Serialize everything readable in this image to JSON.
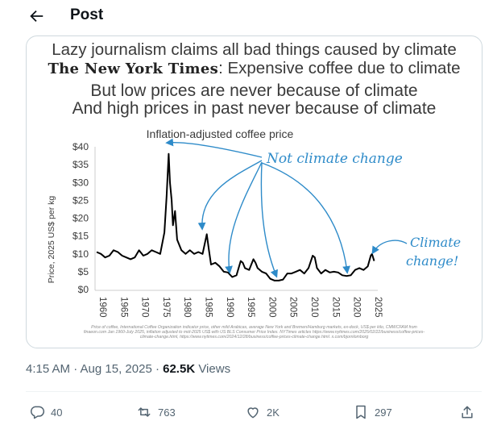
{
  "header": {
    "title": "Post"
  },
  "image": {
    "headline1": "Lazy journalism claims all bad things caused by climate",
    "nyt_name": "The New York Times",
    "headline2_rest": ": Expensive coffee due to climate",
    "headline3": "But low prices are never because of climate",
    "headline4": "And high prices in past never because of climate",
    "footnote": [
      "Price of coffee, International Coffee Organization indicator price, other mild Arabicas, average New York and Bremen/Hamburg markets, ex-dock, US$ per kilo, CMWCFAM from",
      "finaeon.com Jan 1960-July 2025, inflation adjusted to mid-2025 US$ with US BLS Consumer Price Index. NYTimes articles https://www.nytimes.com/2025/02/22/business/coffee-prices-",
      "climate-change.html, https://www.nytimes.com/2024/12/28/business/coffee-prices-climate-change.html. x.com/bjornlomborg"
    ]
  },
  "chart_data": {
    "type": "line",
    "title": "Inflation-adjusted coffee price",
    "ylabel": "Price, 2025 US$ per kg",
    "xlabel": "",
    "ylim": [
      0,
      40
    ],
    "xlim": [
      1960,
      2025.6
    ],
    "yticks": [
      "$0",
      "$5",
      "$10",
      "$15",
      "$20",
      "$25",
      "$30",
      "$35",
      "$40"
    ],
    "yticks_values": [
      0,
      5,
      10,
      15,
      20,
      25,
      30,
      35,
      40
    ],
    "xticks": [
      "1960",
      "1965",
      "1970",
      "1975",
      "1980",
      "1985",
      "1990",
      "1995",
      "2000",
      "2005",
      "2010",
      "2015",
      "2020",
      "2025"
    ],
    "grid": false,
    "series": [
      {
        "x": [
          1960,
          1961,
          1962,
          1963,
          1964,
          1965,
          1966,
          1967,
          1968,
          1969,
          1970,
          1971,
          1972,
          1973,
          1974,
          1975,
          1976,
          1976.5,
          1977,
          1977.3,
          1977.7,
          1978,
          1978.5,
          1979,
          1980,
          1981,
          1982,
          1983,
          1984,
          1985,
          1986,
          1986.5,
          1987,
          1988,
          1989,
          1990,
          1991,
          1992,
          1993,
          1994,
          1994.5,
          1995,
          1996,
          1997,
          1997.5,
          1998,
          1999,
          2000,
          2001,
          2002,
          2003,
          2004,
          2005,
          2006,
          2007,
          2008,
          2009,
          2010,
          2011,
          2011.5,
          2012,
          2013,
          2014,
          2015,
          2016,
          2017,
          2018,
          2019,
          2020,
          2021,
          2022,
          2023,
          2024,
          2024.7,
          2025,
          2025.5
        ],
        "y": [
          10.5,
          10,
          9,
          9.5,
          11,
          10.5,
          9.5,
          9,
          8.5,
          9,
          11,
          9.5,
          10,
          11,
          10.5,
          10,
          16,
          26,
          38,
          30,
          25,
          18,
          22,
          14,
          11,
          10,
          11,
          10,
          10.5,
          10,
          15.5,
          11,
          7,
          7.5,
          6.5,
          5,
          4.8,
          3.5,
          4,
          8,
          7.5,
          6,
          5.5,
          8.5,
          7.5,
          6,
          5,
          4.5,
          3,
          2.5,
          2.5,
          2.8,
          4.5,
          4.5,
          5,
          5.5,
          4.5,
          6,
          9.5,
          9,
          6,
          4.5,
          5.5,
          4.8,
          5,
          4.8,
          4,
          3.8,
          4,
          5.5,
          6,
          5.5,
          6.5,
          9.5,
          10,
          8
        ]
      }
    ],
    "annotations": {
      "not_climate": "Not climate change",
      "climate_line1": "Climate",
      "climate_line2": "change!"
    },
    "colors": {
      "line": "#000000",
      "annotation": "#2e8bc9"
    }
  },
  "meta": {
    "time": "4:15 AM · Aug 15, 2025 · ",
    "views_count": "62.5K",
    "views_label": " Views"
  },
  "actions": {
    "replies": "40",
    "reposts": "763",
    "likes": "2K",
    "bookmarks": "297"
  }
}
